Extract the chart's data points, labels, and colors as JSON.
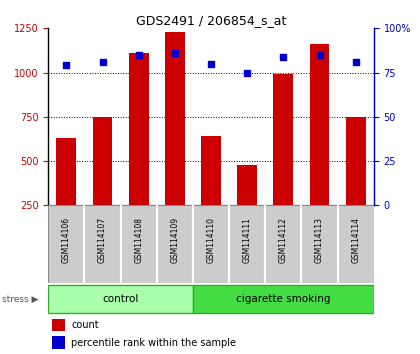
{
  "title": "GDS2491 / 206854_s_at",
  "samples": [
    "GSM114106",
    "GSM114107",
    "GSM114108",
    "GSM114109",
    "GSM114110",
    "GSM114111",
    "GSM114112",
    "GSM114113",
    "GSM114114"
  ],
  "counts": [
    630,
    750,
    1110,
    1230,
    640,
    480,
    990,
    1160,
    750
  ],
  "percentile_ranks": [
    79,
    81,
    85,
    86,
    80,
    75,
    84,
    85,
    81
  ],
  "groups": [
    {
      "label": "control",
      "start": 0,
      "end": 4,
      "color": "#aaffaa"
    },
    {
      "label": "cigarette smoking",
      "start": 4,
      "end": 9,
      "color": "#44dd44"
    }
  ],
  "bar_color": "#cc0000",
  "dot_color": "#0000cc",
  "ylim_left": [
    250,
    1250
  ],
  "ylim_right": [
    0,
    100
  ],
  "yticks_left": [
    250,
    500,
    750,
    1000,
    1250
  ],
  "yticks_right": [
    0,
    25,
    50,
    75,
    100
  ],
  "yticklabels_right": [
    "0",
    "25",
    "50",
    "75",
    "100%"
  ],
  "grid_values": [
    500,
    750,
    1000
  ],
  "left_axis_color": "#cc0000",
  "right_axis_color": "#0000cc",
  "bar_width": 0.55,
  "stress_label": "stress",
  "legend_count_label": "count",
  "legend_pct_label": "percentile rank within the sample",
  "bg_color": "#ffffff",
  "gray_box_color": "#cccccc",
  "gray_box_edge": "#999999"
}
